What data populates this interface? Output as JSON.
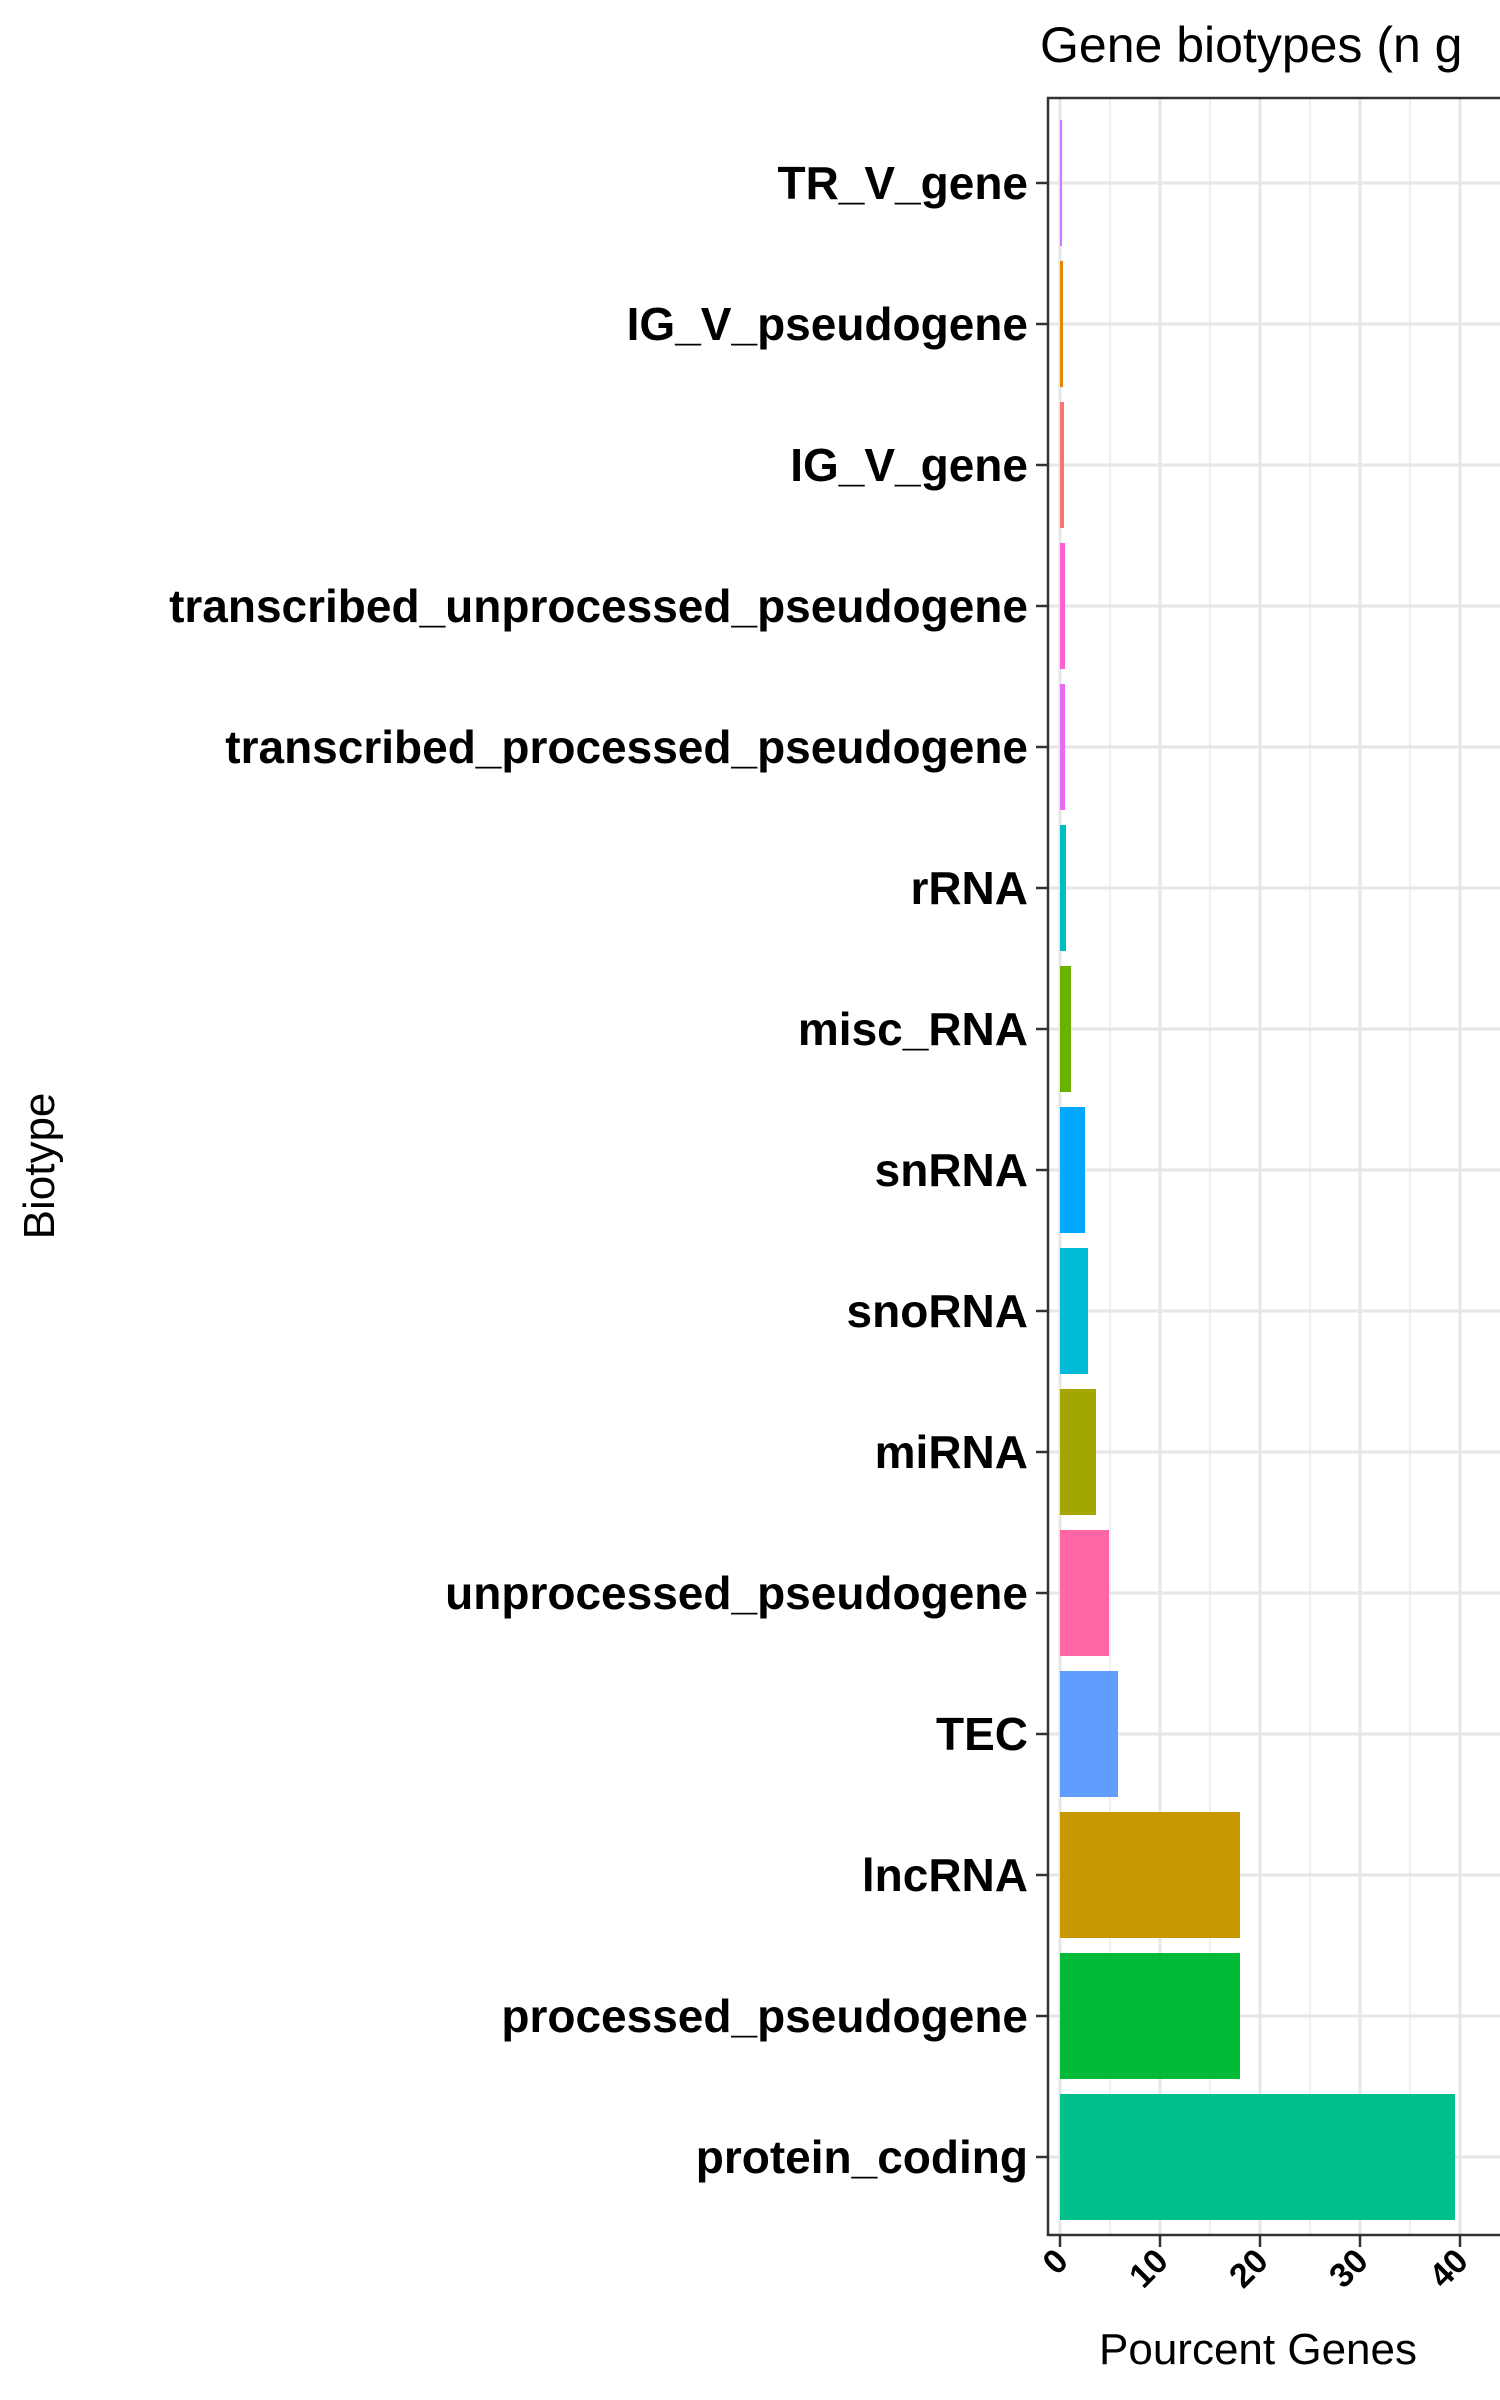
{
  "chart_data": {
    "type": "bar",
    "orientation": "horizontal",
    "title": "Gene biotypes (n g",
    "xlabel": "Pourcent Genes",
    "ylabel": "Biotype",
    "xlim": [
      -1.2,
      43
    ],
    "xticks": [
      "0",
      "10",
      "20",
      "30",
      "40"
    ],
    "grid": true,
    "legend": "none",
    "categories": [
      "TR_V_gene",
      "IG_V_pseudogene",
      "IG_V_gene",
      "transcribed_unprocessed_pseudogene",
      "transcribed_processed_pseudogene",
      "rRNA",
      "misc_RNA",
      "snRNA",
      "snoRNA",
      "miRNA",
      "unprocessed_pseudogene",
      "TEC",
      "lncRNA",
      "processed_pseudogene",
      "protein_coding"
    ],
    "values": [
      0.2,
      0.3,
      0.4,
      0.5,
      0.5,
      0.6,
      1.1,
      2.5,
      2.8,
      3.6,
      4.9,
      5.8,
      18.0,
      18.0,
      39.5
    ],
    "colors": [
      "#C77CFF",
      "#E58700",
      "#F8766D",
      "#FD61D1",
      "#E76BF3",
      "#00BFC4",
      "#6BB100",
      "#00A9FF",
      "#00BCD8",
      "#A3A500",
      "#FF67A4",
      "#619CFF",
      "#C99800",
      "#00BA38",
      "#00C08B"
    ]
  }
}
